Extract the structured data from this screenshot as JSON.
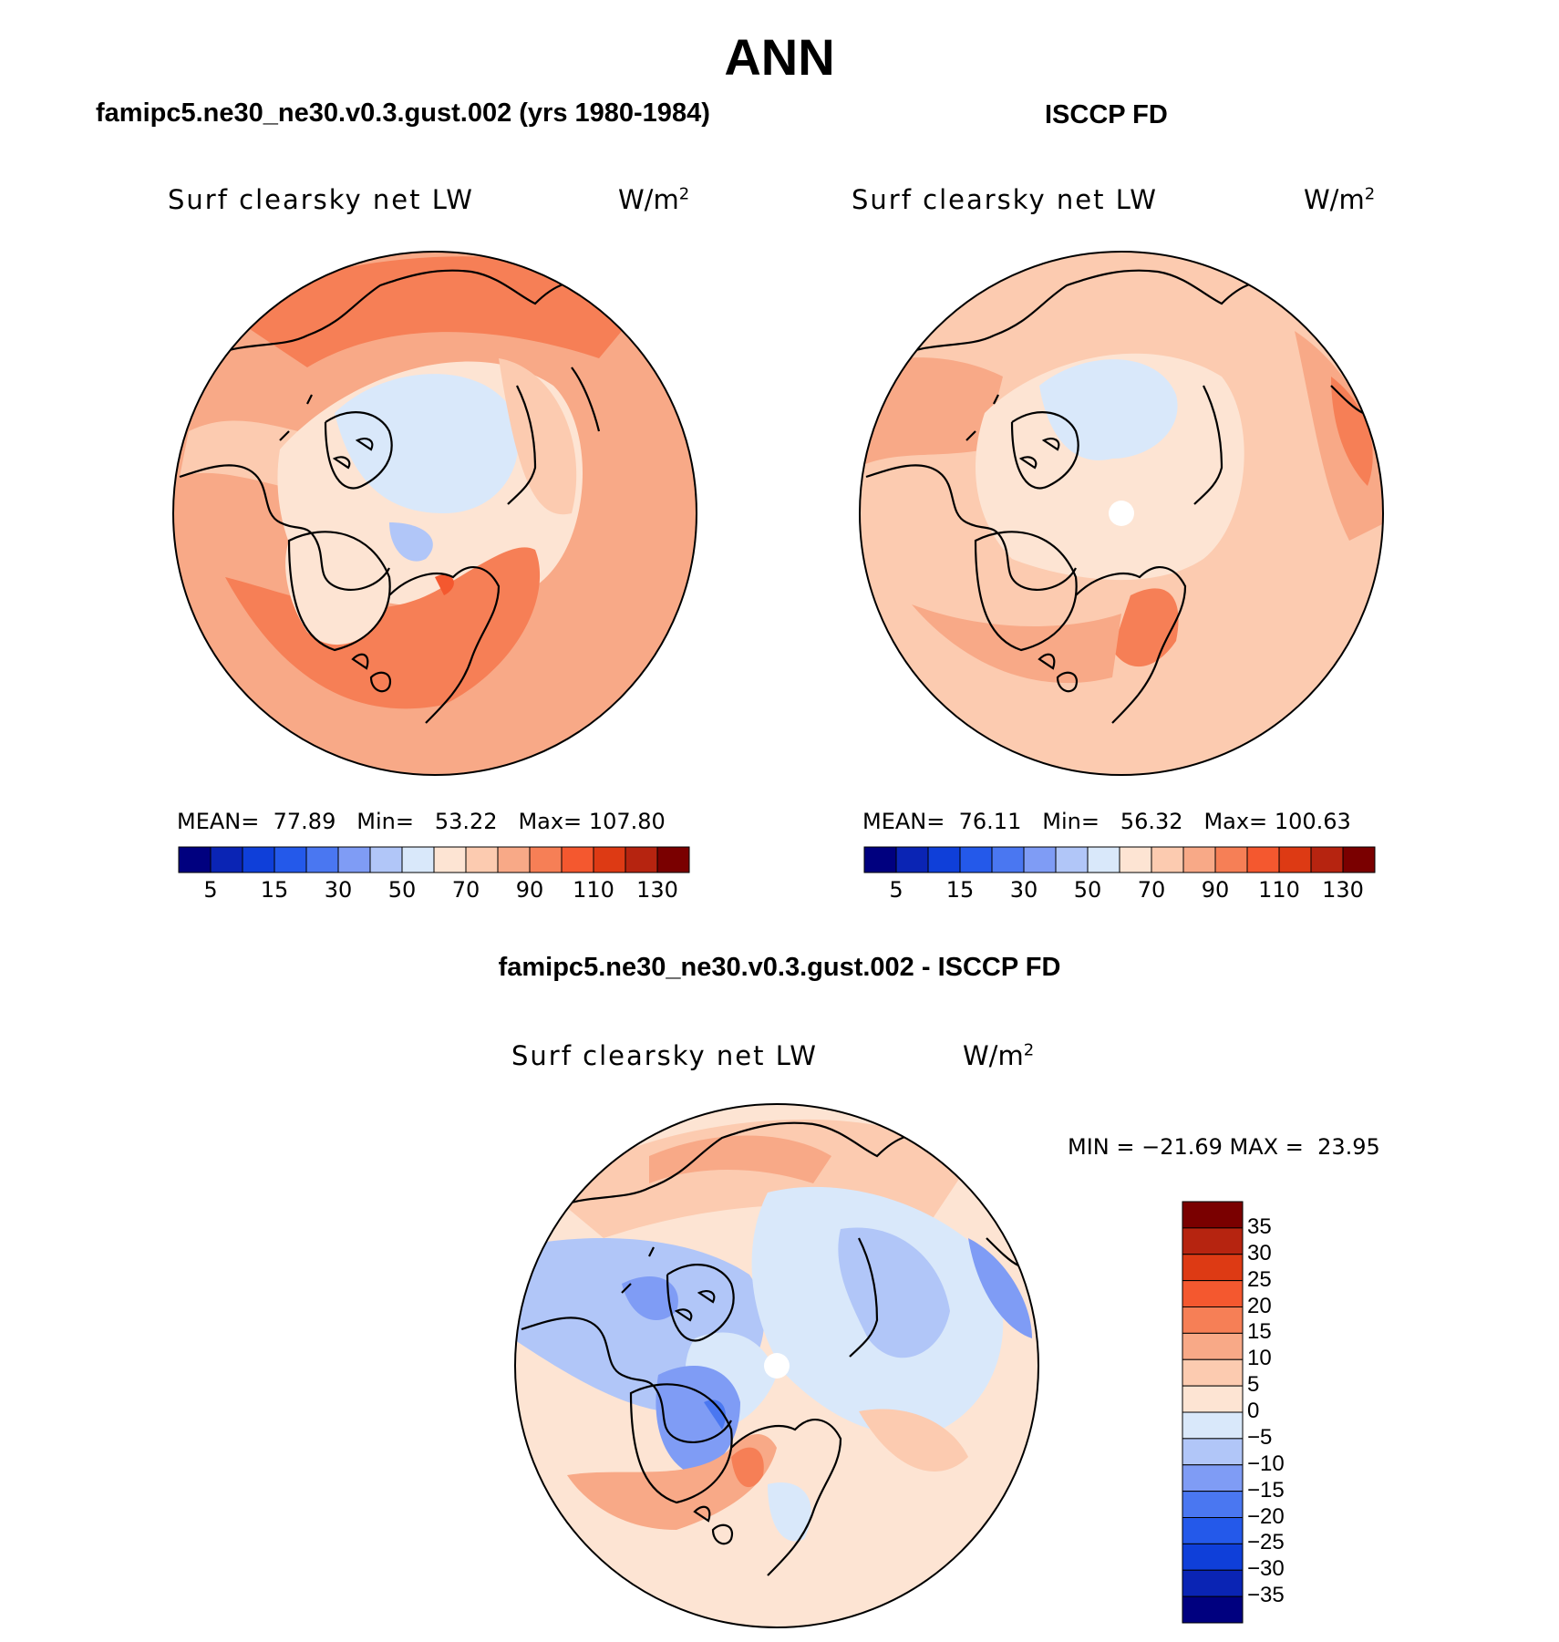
{
  "figure": {
    "title": "ANN"
  },
  "colors": {
    "ocean_outline": "#000000",
    "colormap": [
      "#00007f",
      "#0a24b4",
      "#0f3fd9",
      "#2459ea",
      "#4a77f1",
      "#7f9cf5",
      "#b1c6f8",
      "#d9e8fa",
      "#fde4d3",
      "#fccbb0",
      "#f8a987",
      "#f67f56",
      "#f4582f",
      "#dd3a14",
      "#b62410",
      "#7a0000"
    ],
    "diff_colormap": [
      "#00007f",
      "#0a24b4",
      "#0f3fd9",
      "#2459ea",
      "#4a77f1",
      "#7f9cf5",
      "#b1c6f8",
      "#d9e8fa",
      "#fde4d3",
      "#fccbb0",
      "#f8a987",
      "#f67f56",
      "#f4582f",
      "#dd3a14",
      "#b62410",
      "#7a0000"
    ]
  },
  "panels": [
    {
      "title": "famipc5.ne30_ne30.v0.3.gust.002 (yrs 1980-1984)",
      "variable": "Surf clearsky net LW",
      "units": "W/m",
      "units_exp": "2",
      "stats": {
        "mean_label": "MEAN=",
        "mean": "77.89",
        "min_label": "Min=",
        "min": "53.22",
        "max_label": "Max=",
        "max": "107.80"
      },
      "colorbar_ticks": [
        "5",
        "15",
        "30",
        "50",
        "70",
        "90",
        "110",
        "130"
      ]
    },
    {
      "title": "ISCCP FD",
      "variable": "Surf clearsky net LW",
      "units": "W/m",
      "units_exp": "2",
      "stats": {
        "mean_label": "MEAN=",
        "mean": "76.11",
        "min_label": "Min=",
        "min": "56.32",
        "max_label": "Max=",
        "max": "100.63"
      },
      "colorbar_ticks": [
        "5",
        "15",
        "30",
        "50",
        "70",
        "90",
        "110",
        "130"
      ]
    }
  ],
  "difference": {
    "title": "famipc5.ne30_ne30.v0.3.gust.002 - ISCCP FD",
    "variable": "Surf clearsky net LW",
    "units": "W/m",
    "units_exp": "2",
    "minmax": "MIN = −21.69 MAX =  23.95",
    "colorbar_ticks": [
      "35",
      "30",
      "25",
      "20",
      "15",
      "10",
      "5",
      "0",
      "−5",
      "−10",
      "−15",
      "−20",
      "−25",
      "−30",
      "−35"
    ]
  }
}
